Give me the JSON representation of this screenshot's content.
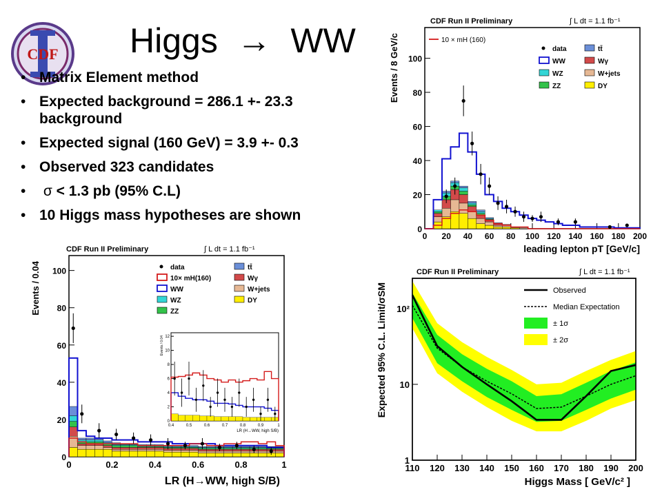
{
  "slide": {
    "title_left": "Higgs",
    "title_arrow": "→",
    "title_right": "WW",
    "logo_text": "CDF",
    "bullets": [
      {
        "prefix": "",
        "text": "Matrix Element method"
      },
      {
        "prefix": "",
        "text": "Expected background = 286.1 +- 23.3"
      },
      {
        "prefix": "",
        "text": "Expected signal (160 GeV) = 3.9 +- 0.3"
      },
      {
        "prefix": "",
        "text": "Observed 323 candidates"
      },
      {
        "prefix": "σ",
        "text": " < 1.3 pb (95% C.L)"
      },
      {
        "prefix": "",
        "text": "10 Higgs mass hypotheses are shown"
      }
    ],
    "bullet_continuation": "background",
    "bullet_marker": "•"
  },
  "chart_data": [
    {
      "id": "pt",
      "type": "bar",
      "title": "CDF Run II Preliminary",
      "lumi": "∫ L dt = 1.1 fb⁻¹",
      "xlabel": "leading lepton pT [GeV/c]",
      "ylabel": "Events / 8 GeV/c",
      "xlim": [
        0,
        200
      ],
      "ylim": [
        0,
        118
      ],
      "xticks": [
        0,
        20,
        40,
        60,
        80,
        100,
        120,
        140,
        160,
        180,
        200
      ],
      "yticks": [
        0,
        20,
        40,
        60,
        80,
        100
      ],
      "bin_edges": [
        0,
        8,
        16,
        24,
        32,
        40,
        48,
        56,
        64,
        72,
        80,
        88,
        96,
        104,
        112,
        120,
        128,
        136,
        144,
        152,
        160,
        168,
        176,
        184,
        192,
        200
      ],
      "legend": [
        {
          "label": "data",
          "kind": "marker",
          "color": "#000000"
        },
        {
          "label": "tt̄",
          "kind": "box",
          "color": "#6b8fd8"
        },
        {
          "label": "WW",
          "kind": "box",
          "color": "#ffffff",
          "edge": "#1010d0"
        },
        {
          "label": "Wγ",
          "kind": "box",
          "color": "#d24a4a"
        },
        {
          "label": "WZ",
          "kind": "box",
          "color": "#33d6d6"
        },
        {
          "label": "W+jets",
          "kind": "box",
          "color": "#e6b894"
        },
        {
          "label": "ZZ",
          "kind": "box",
          "color": "#33c24a"
        },
        {
          "label": "DY",
          "kind": "box",
          "color": "#ffee00"
        }
      ],
      "signal_label": "10 × mH (160)",
      "stack": [
        {
          "name": "DY",
          "color": "#ffee00",
          "values": [
            0,
            4,
            7,
            10,
            9,
            6,
            3,
            2,
            1,
            1,
            0.5,
            0,
            0,
            0,
            0,
            0,
            0,
            0,
            0,
            0,
            0,
            0,
            0,
            0,
            0
          ]
        },
        {
          "name": "W+jets",
          "color": "#e6b894",
          "values": [
            0,
            3,
            5,
            7,
            6,
            4,
            3,
            2,
            1,
            1,
            0.5,
            0.5,
            0,
            0,
            0,
            0,
            0,
            0,
            0,
            0,
            0,
            0,
            0,
            0,
            0
          ]
        },
        {
          "name": "Wγ",
          "color": "#d24a4a",
          "values": [
            0,
            2,
            5,
            6,
            5,
            3,
            2,
            1,
            1,
            0.5,
            0,
            0,
            0,
            0,
            0,
            0,
            0,
            0,
            0,
            0,
            0,
            0,
            0,
            0,
            0
          ]
        },
        {
          "name": "ZZ",
          "color": "#33c24a",
          "values": [
            0,
            1,
            2,
            2,
            2,
            1,
            1,
            0.5,
            0,
            0,
            0,
            0,
            0,
            0,
            0,
            0,
            0,
            0,
            0,
            0,
            0,
            0,
            0,
            0,
            0
          ]
        },
        {
          "name": "WZ",
          "color": "#33d6d6",
          "values": [
            0,
            1,
            2,
            2,
            2,
            1,
            1,
            0.5,
            0,
            0,
            0,
            0,
            0,
            0,
            0,
            0,
            0,
            0,
            0,
            0,
            0,
            0,
            0,
            0,
            0
          ]
        },
        {
          "name": "tt̄",
          "color": "#6b8fd8",
          "values": [
            0,
            0,
            1,
            1,
            1,
            1,
            1,
            0.5,
            0.5,
            0,
            0,
            0,
            0,
            0,
            0,
            0,
            0,
            0,
            0,
            0,
            0,
            0,
            0,
            0,
            0
          ]
        }
      ],
      "ww_total": [
        0,
        17,
        41,
        48,
        56,
        45,
        32,
        20,
        16,
        12,
        10,
        8,
        6,
        5,
        4,
        3,
        2,
        2,
        1,
        1,
        1,
        1,
        0.5,
        0.5,
        0.5
      ],
      "signal": [
        0,
        2,
        6,
        9,
        11,
        10,
        8,
        5,
        3,
        2,
        1,
        1,
        0,
        0,
        0,
        0,
        0,
        0,
        0,
        0,
        0,
        0,
        0,
        0,
        0
      ],
      "data": {
        "x": [
          20,
          28,
          36,
          44,
          52,
          60,
          68,
          76,
          84,
          92,
          100,
          108,
          124,
          140,
          172,
          188
        ],
        "y": [
          19,
          25,
          75,
          50,
          32,
          25,
          15,
          13,
          10,
          7,
          6,
          7,
          4,
          4,
          1,
          2
        ],
        "err": [
          4,
          5,
          9,
          7,
          6,
          5,
          4,
          4,
          3,
          3,
          2,
          3,
          2,
          2,
          1,
          1
        ]
      }
    },
    {
      "id": "lr",
      "type": "bar",
      "title": "CDF Run II Preliminary",
      "lumi": "∫ L dt = 1.1 fb⁻¹",
      "xlabel": "LR (H→WW, high S/B)",
      "ylabel": "Events / 0.04",
      "xlim": [
        0,
        1
      ],
      "ylim": [
        0,
        108
      ],
      "xticks": [
        0,
        0.2,
        0.4,
        0.6,
        0.8,
        1
      ],
      "yticks": [
        0,
        20,
        40,
        60,
        80,
        100
      ],
      "bin_edges": [
        0,
        0.04,
        0.08,
        0.12,
        0.16,
        0.2,
        0.24,
        0.28,
        0.32,
        0.36,
        0.4,
        0.44,
        0.48,
        0.52,
        0.56,
        0.6,
        0.64,
        0.68,
        0.72,
        0.76,
        0.8,
        0.84,
        0.88,
        0.92,
        0.96,
        1
      ],
      "legend": [
        {
          "label": "data",
          "kind": "marker",
          "color": "#000000"
        },
        {
          "label": "tt̄",
          "kind": "box",
          "color": "#6b8fd8"
        },
        {
          "label": "10× mH(160)",
          "kind": "line",
          "color": "#d41a1a"
        },
        {
          "label": "Wγ",
          "kind": "box",
          "color": "#d24a4a"
        },
        {
          "label": "WW",
          "kind": "line",
          "color": "#1010d0"
        },
        {
          "label": "W+jets",
          "kind": "box",
          "color": "#e6b894"
        },
        {
          "label": "WZ",
          "kind": "box",
          "color": "#33d6d6"
        },
        {
          "label": "DY",
          "kind": "box",
          "color": "#ffee00"
        },
        {
          "label": "ZZ",
          "kind": "box",
          "color": "#33c24a"
        }
      ],
      "stack": [
        {
          "name": "DY",
          "color": "#ffee00",
          "values": [
            5,
            4,
            4,
            4,
            4,
            3,
            3,
            3,
            3,
            3,
            3,
            2.5,
            2.5,
            2.5,
            2.5,
            2,
            2,
            2,
            2,
            2,
            2,
            2,
            2,
            2,
            2
          ]
        },
        {
          "name": "W+jets",
          "color": "#e6b894",
          "values": [
            6,
            2,
            2,
            2,
            1,
            1,
            1,
            1,
            1,
            1,
            1,
            1,
            1,
            1,
            1,
            1,
            1,
            1,
            1,
            1,
            1,
            1,
            1,
            1,
            1
          ]
        },
        {
          "name": "Wγ",
          "color": "#d24a4a",
          "values": [
            5,
            1,
            1,
            1,
            1,
            1,
            1,
            1,
            1,
            1,
            1,
            1,
            1,
            1,
            1,
            1,
            1,
            1,
            1,
            1,
            1,
            1,
            1,
            1,
            1
          ]
        },
        {
          "name": "ZZ",
          "color": "#33c24a",
          "values": [
            3,
            1,
            1,
            1,
            1,
            1,
            1,
            1,
            0.5,
            0.5,
            0.5,
            0.5,
            0.5,
            0.5,
            0.5,
            0.5,
            0.5,
            0.5,
            0.5,
            0.5,
            0.5,
            0.5,
            0.5,
            0.5,
            0.5
          ]
        },
        {
          "name": "WZ",
          "color": "#33d6d6",
          "values": [
            3,
            1,
            1,
            1,
            0.5,
            0.5,
            0.5,
            0.5,
            0.5,
            0.5,
            0.5,
            0.5,
            0.5,
            0.5,
            0.5,
            0.5,
            0.5,
            0.5,
            0.5,
            0.5,
            0.5,
            0.5,
            0.5,
            0.5,
            0.5
          ]
        },
        {
          "name": "tt̄",
          "color": "#6b8fd8",
          "values": [
            5,
            1,
            1,
            1,
            1,
            1,
            0.5,
            0.5,
            0.5,
            0.5,
            0.5,
            0.5,
            0.5,
            0.5,
            0.5,
            0.5,
            0.5,
            0.5,
            0.5,
            0.5,
            0.5,
            0.5,
            0.5,
            0.5,
            0.5
          ]
        }
      ],
      "ww_total": [
        53,
        14,
        11,
        10,
        10,
        9,
        9,
        9,
        8,
        8,
        8,
        8,
        7,
        7,
        7,
        7,
        7,
        6,
        6,
        6,
        6,
        6,
        6,
        5,
        5
      ],
      "signal": [
        10,
        8,
        7,
        7,
        7,
        7,
        7,
        7,
        6,
        6,
        6,
        6,
        6,
        6,
        7,
        7,
        6,
        6,
        7,
        7,
        8,
        8,
        7,
        8,
        6
      ],
      "data": {
        "x": [
          0.02,
          0.06,
          0.14,
          0.22,
          0.3,
          0.38,
          0.46,
          0.54,
          0.62,
          0.7,
          0.78,
          0.86,
          0.94
        ],
        "y": [
          69,
          23,
          14,
          12,
          10,
          9,
          7,
          6,
          7,
          5,
          6,
          4,
          3
        ],
        "err": [
          8,
          5,
          4,
          3,
          3,
          3,
          3,
          2,
          3,
          2,
          2,
          2,
          2
        ]
      },
      "inset": {
        "ylabel": "Events / 0.04",
        "xlabel": "LR (H→WW, high S/B)",
        "xlim": [
          0.4,
          1
        ],
        "ylim": [
          0,
          12.5
        ],
        "xticks": [
          0.4,
          0.5,
          0.6,
          0.7,
          0.8,
          0.9,
          1
        ],
        "yticks": [
          0,
          2,
          4,
          6,
          8,
          10,
          12
        ],
        "bin_edges": [
          0.4,
          0.44,
          0.48,
          0.52,
          0.56,
          0.6,
          0.64,
          0.68,
          0.72,
          0.76,
          0.8,
          0.84,
          0.88,
          0.92,
          0.96,
          1
        ],
        "ww_total": [
          4,
          3.5,
          3.2,
          3,
          3,
          2.8,
          2.5,
          2.5,
          2.4,
          2.2,
          2,
          2,
          2,
          1.8,
          1.5
        ],
        "signal": [
          6.2,
          6.3,
          6.5,
          6.8,
          6.5,
          6,
          5.8,
          5.5,
          5.8,
          5.5,
          5.7,
          6,
          5.8,
          7,
          6
        ],
        "stack": [
          1,
          0.8,
          0.8,
          0.8,
          0.7,
          0.7,
          0.6,
          0.6,
          0.6,
          0.6,
          0.5,
          0.5,
          0.5,
          0.5,
          0.5
        ],
        "data": {
          "x": [
            0.42,
            0.46,
            0.5,
            0.54,
            0.58,
            0.62,
            0.66,
            0.7,
            0.74,
            0.78,
            0.82,
            0.86,
            0.9,
            0.94,
            0.98
          ],
          "y": [
            6,
            4,
            6,
            3,
            5,
            2,
            4,
            3,
            2,
            4,
            2,
            3,
            1,
            3,
            1
          ],
          "err": [
            2.4,
            2,
            2.4,
            1.7,
            2.2,
            1.4,
            2,
            1.7,
            1.4,
            2,
            1.4,
            1.7,
            1,
            1.7,
            1
          ]
        }
      }
    },
    {
      "id": "limit",
      "type": "line",
      "title": "CDF Run II Preliminary",
      "lumi": "∫ L dt = 1.1 fb⁻¹",
      "xlabel": "Higgs Mass [ GeV/c² ]",
      "ylabel": "Expected 95% C.L. Limit/σSM",
      "scale_y": "log",
      "xlim": [
        110,
        200
      ],
      "ylim": [
        1,
        250
      ],
      "xticks": [
        110,
        120,
        130,
        140,
        150,
        160,
        170,
        180,
        190,
        200
      ],
      "yticks": [
        1,
        10,
        100
      ],
      "ytick_labels": [
        "1",
        "10",
        "10²"
      ],
      "legend": [
        {
          "label": "Observed",
          "kind": "line",
          "color": "#000000"
        },
        {
          "label": "Median Expectation",
          "kind": "dotted",
          "color": "#000000"
        },
        {
          "label": "± 1σ",
          "kind": "box",
          "color": "#22ee22"
        },
        {
          "label": "± 2σ",
          "kind": "box",
          "color": "#ffff00"
        }
      ],
      "x": [
        110,
        120,
        130,
        140,
        150,
        160,
        170,
        180,
        190,
        200
      ],
      "observed": [
        150,
        32,
        17,
        10,
        6,
        3.4,
        3.4,
        7,
        15,
        18
      ],
      "expected": [
        110,
        30,
        17,
        11,
        7.5,
        4.8,
        5,
        7,
        10,
        13
      ],
      "band1_low": [
        75,
        19,
        11,
        6.8,
        4.6,
        3.2,
        3.3,
        4.6,
        6.5,
        8.5
      ],
      "band1_high": [
        160,
        45,
        25,
        16,
        11,
        7,
        7.4,
        10.5,
        15,
        19.5
      ],
      "band2_low": [
        55,
        14,
        8,
        5,
        3.3,
        2.4,
        2.4,
        3.3,
        4.8,
        6.2
      ],
      "band2_high": [
        230,
        64,
        36,
        23,
        15.5,
        10,
        10.5,
        15,
        21,
        27.5
      ]
    }
  ]
}
